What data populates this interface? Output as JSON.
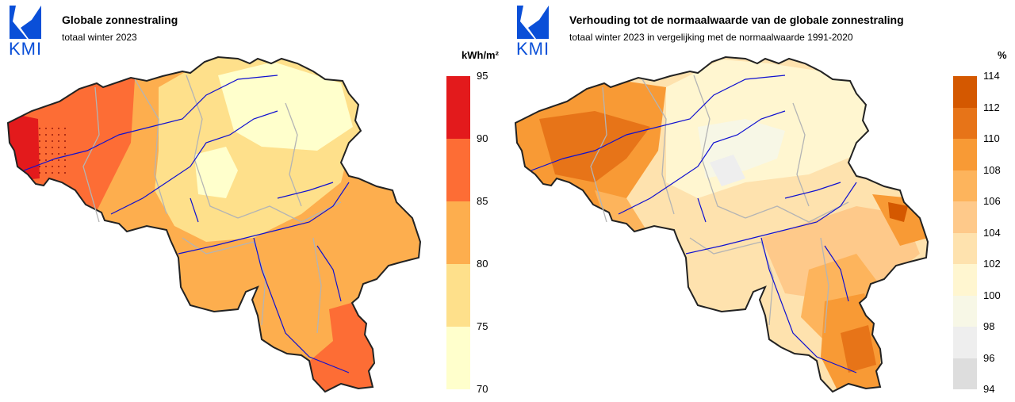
{
  "logo_text": "KMI",
  "colors": {
    "outline": "#222222",
    "river": "#1010d0",
    "province": "#b4b4b4",
    "logo": "#0a4fd8"
  },
  "left_map": {
    "title": "Globale zonnestraling",
    "subtitle": "totaal winter 2023",
    "unit": "kWh/m²",
    "legend": {
      "ticks": [
        "95",
        "90",
        "85",
        "80",
        "75",
        "70"
      ],
      "colors": [
        "#e31a1c",
        "#fd6d35",
        "#fdae4e",
        "#fee08b",
        "#ffffcc"
      ]
    }
  },
  "right_map": {
    "title": "Verhouding tot de normaalwaarde van de globale zonnestraling",
    "subtitle": "totaal winter 2023 in vergelijking met de normaalwaarde 1991-2020",
    "unit": "%",
    "legend": {
      "ticks": [
        "114",
        "112",
        "110",
        "108",
        "106",
        "104",
        "102",
        "100",
        "98",
        "96",
        "94"
      ],
      "colors": [
        "#d45800",
        "#e77418",
        "#f89a35",
        "#fdb45c",
        "#fec98a",
        "#fee2ae",
        "#fff6d0",
        "#f7f7e6",
        "#eeeeee",
        "#dddddd"
      ]
    }
  }
}
